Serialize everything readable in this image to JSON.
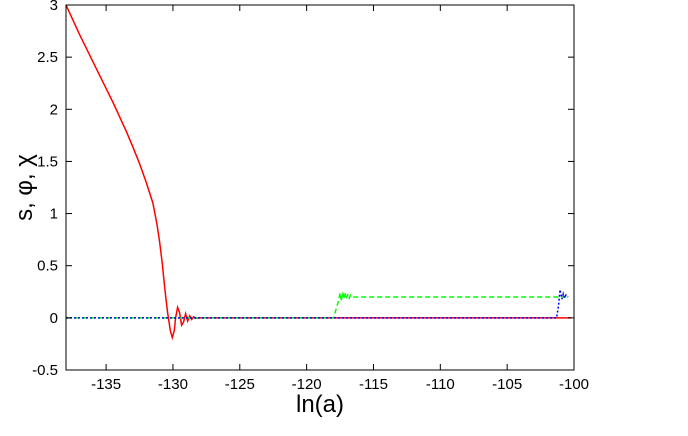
{
  "chart_data": {
    "type": "line",
    "xlabel": "ln(a)",
    "ylabel": "s, φ, χ",
    "xlim": [
      -138,
      -100
    ],
    "ylim": [
      -0.5,
      3
    ],
    "x_ticks": [
      -135,
      -130,
      -125,
      -120,
      -115,
      -110,
      -105,
      -100
    ],
    "y_ticks": [
      -0.5,
      0,
      0.5,
      1,
      1.5,
      2,
      2.5,
      3
    ],
    "y_tick_labels": [
      "-0.5",
      "0",
      "0.5",
      "1",
      "1.5",
      "2",
      "2.5",
      "3"
    ],
    "grid": false,
    "legend": "none",
    "series": [
      {
        "color": "#ff0000",
        "style": "solid",
        "points": [
          [
            -138,
            3.0
          ],
          [
            -137.5,
            2.86
          ],
          [
            -137,
            2.72
          ],
          [
            -136.5,
            2.59
          ],
          [
            -136,
            2.46
          ],
          [
            -135.5,
            2.33
          ],
          [
            -135,
            2.2
          ],
          [
            -134.5,
            2.07
          ],
          [
            -134,
            1.93
          ],
          [
            -133.5,
            1.79
          ],
          [
            -133,
            1.64
          ],
          [
            -132.5,
            1.48
          ],
          [
            -132,
            1.3
          ],
          [
            -131.5,
            1.1
          ],
          [
            -131.2,
            0.9
          ],
          [
            -131,
            0.73
          ],
          [
            -130.8,
            0.52
          ],
          [
            -130.6,
            0.27
          ],
          [
            -130.4,
            0.05
          ],
          [
            -130.2,
            -0.12
          ],
          [
            -130.05,
            -0.19
          ],
          [
            -129.9,
            -0.12
          ],
          [
            -129.8,
            0.0
          ],
          [
            -129.65,
            0.1
          ],
          [
            -129.5,
            0.05
          ],
          [
            -129.35,
            -0.07
          ],
          [
            -129.2,
            -0.04
          ],
          [
            -129.05,
            0.04
          ],
          [
            -128.9,
            -0.03
          ],
          [
            -128.75,
            0.02
          ],
          [
            -128.6,
            -0.015
          ],
          [
            -128.45,
            0.01
          ],
          [
            -128.3,
            -0.005
          ],
          [
            -128,
            0.0
          ],
          [
            -100.2,
            0.0
          ]
        ]
      },
      {
        "color": "#00ff00",
        "style": "dashed",
        "points": [
          [
            -138,
            0.0
          ],
          [
            -118,
            0.0
          ],
          [
            -117.8,
            0.08
          ],
          [
            -117.6,
            0.17
          ],
          [
            -117.5,
            0.24
          ],
          [
            -117.4,
            0.16
          ],
          [
            -117.3,
            0.25
          ],
          [
            -117.2,
            0.18
          ],
          [
            -117.1,
            0.24
          ],
          [
            -117,
            0.2
          ],
          [
            -116.9,
            0.23
          ],
          [
            -116.8,
            0.19
          ],
          [
            -116.7,
            0.22
          ],
          [
            -116.5,
            0.2
          ],
          [
            -100.5,
            0.2
          ]
        ]
      },
      {
        "color": "#0000ff",
        "style": "dotted",
        "points": [
          [
            -138,
            0.0
          ],
          [
            -101.3,
            0.0
          ],
          [
            -101.15,
            0.12
          ],
          [
            -101.05,
            0.27
          ],
          [
            -100.9,
            0.18
          ],
          [
            -100.8,
            0.23
          ],
          [
            -100.7,
            0.19
          ],
          [
            -100.6,
            0.22
          ],
          [
            -100.45,
            0.2
          ]
        ]
      }
    ]
  }
}
